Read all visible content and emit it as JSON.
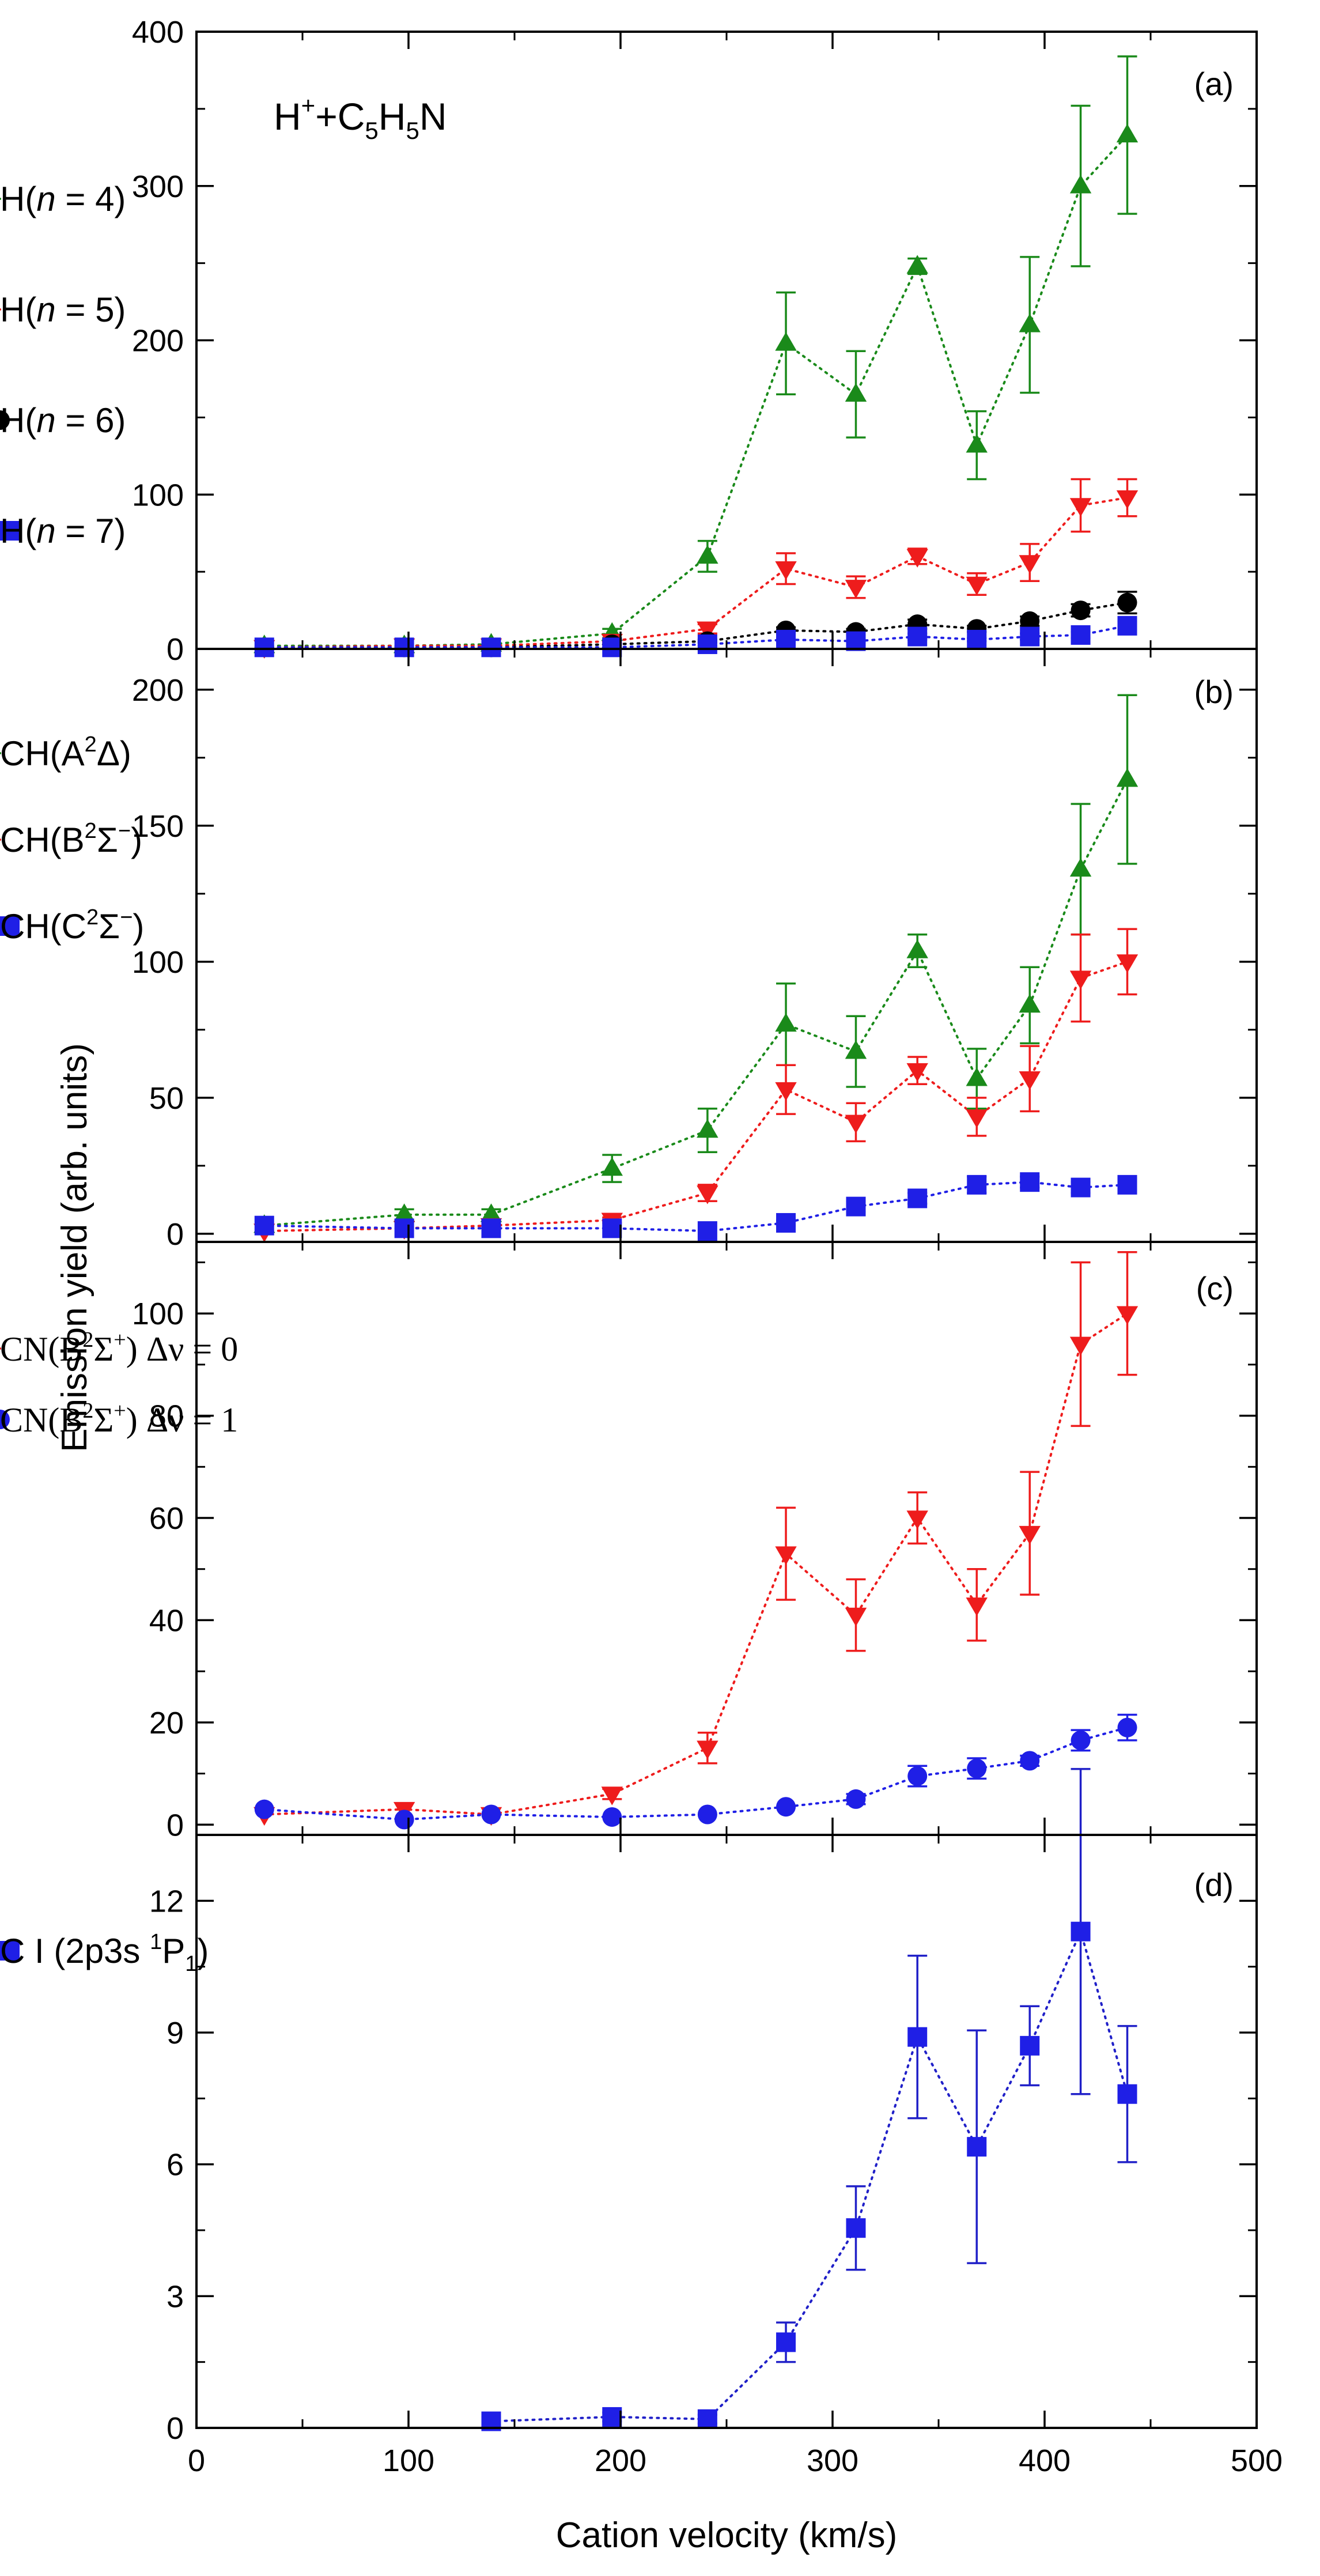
{
  "figure": {
    "ylabel": "Emission yield (arb. units)",
    "xlabel": "Cation velocity (km/s)",
    "xlim": [
      0,
      500
    ],
    "xticks": [
      0,
      100,
      200,
      300,
      400,
      500
    ],
    "xtick_labels": [
      "0",
      "100",
      "200",
      "300",
      "400",
      "500"
    ],
    "colors": {
      "green": "#1a8a1a",
      "red": "#ee1c1c",
      "black": "#000000",
      "blue": "#1f1fe6",
      "blue_dark": "#2020c8"
    }
  },
  "chart_data": [
    {
      "type": "scatter",
      "panel_label": "(a)",
      "title_parts": [
        "H",
        "+",
        "+C",
        "5",
        "H",
        "5",
        "N"
      ],
      "ylim": [
        0,
        400
      ],
      "yticks": [
        0,
        100,
        200,
        300,
        400
      ],
      "ytick_labels": [
        "0",
        "100",
        "200",
        "300",
        "400"
      ],
      "series": [
        {
          "name": "H(n = 4)",
          "legend": [
            "H(",
            "n",
            " = 4)"
          ],
          "color": "#1a8a1a",
          "err_color": "#1a8a1a",
          "line_color": "#1a8a1a",
          "marker": "triangle-up",
          "x": [
            32,
            98,
            139,
            196,
            241,
            278,
            311,
            340,
            368,
            393,
            417,
            439
          ],
          "y": [
            2,
            2,
            3,
            10,
            60,
            198,
            165,
            248,
            132,
            210,
            300,
            333
          ],
          "err": [
            0,
            0,
            0,
            3,
            10,
            33,
            28,
            5,
            22,
            44,
            52,
            51
          ]
        },
        {
          "name": "H(n = 5)",
          "legend": [
            "H(",
            "n",
            " = 5)"
          ],
          "color": "#ee1c1c",
          "err_color": "#ee1c1c",
          "line_color": "#ee1c1c",
          "marker": "triangle-down",
          "x": [
            32,
            98,
            139,
            196,
            241,
            278,
            311,
            340,
            368,
            393,
            417,
            439
          ],
          "y": [
            1,
            2,
            2,
            5,
            13,
            52,
            40,
            60,
            42,
            56,
            93,
            98
          ],
          "err": [
            0,
            0,
            0,
            1,
            3,
            10,
            7,
            5,
            7,
            12,
            17,
            12
          ]
        },
        {
          "name": "H(n = 6)",
          "legend": [
            "H(",
            "n",
            " = 6)"
          ],
          "color": "#000000",
          "err_color": "#000000",
          "line_color": "#000000",
          "marker": "circle",
          "x": [
            32,
            98,
            139,
            196,
            241,
            278,
            311,
            340,
            368,
            393,
            417,
            439
          ],
          "y": [
            1,
            1,
            1,
            3,
            5,
            12,
            11,
            16,
            13,
            18,
            25,
            30
          ],
          "err": [
            0,
            0,
            0,
            0,
            1,
            2,
            2,
            3,
            2,
            3,
            4,
            7
          ]
        },
        {
          "name": "H(n = 7)",
          "legend": [
            "H(",
            "n",
            " = 7)"
          ],
          "color": "#1f1fe6",
          "err_color": "#1f1fe6",
          "line_color": "#1f1fe6",
          "marker": "square",
          "x": [
            32,
            98,
            139,
            196,
            241,
            278,
            311,
            340,
            368,
            393,
            417,
            439
          ],
          "y": [
            1,
            1,
            1,
            1,
            3,
            6,
            5,
            8,
            6,
            8,
            9,
            15
          ],
          "err": [
            0,
            0,
            0,
            0,
            1,
            1,
            1,
            2,
            1,
            2,
            2,
            3
          ]
        }
      ]
    },
    {
      "type": "scatter",
      "panel_label": "(b)",
      "ylim": [
        -3,
        215
      ],
      "yticks": [
        0,
        50,
        100,
        150,
        200
      ],
      "ytick_labels": [
        "0",
        "50",
        "100",
        "150",
        "200"
      ],
      "series": [
        {
          "name": "CH(A2Δ)",
          "legend": [
            "CH(A",
            "2",
            "Δ)"
          ],
          "color": "#1a8a1a",
          "err_color": "#1a8a1a",
          "line_color": "#1a8a1a",
          "marker": "triangle-up",
          "x": [
            32,
            98,
            139,
            196,
            241,
            278,
            311,
            340,
            368,
            393,
            417,
            439
          ],
          "y": [
            3,
            7,
            7,
            24,
            38,
            77,
            67,
            104,
            57,
            84,
            134,
            167
          ],
          "err": [
            0,
            2,
            2,
            5,
            8,
            15,
            13,
            6,
            11,
            14,
            24,
            31
          ]
        },
        {
          "name": "CH(B2Σ−)",
          "legend": [
            "CH(B",
            "2",
            "Σ",
            "−",
            ")"
          ],
          "color": "#ee1c1c",
          "err_color": "#ee1c1c",
          "line_color": "#ee1c1c",
          "marker": "triangle-down",
          "x": [
            32,
            98,
            139,
            196,
            241,
            278,
            311,
            340,
            368,
            393,
            417,
            439
          ],
          "y": [
            1,
            2,
            3,
            5,
            15,
            53,
            41,
            60,
            43,
            57,
            94,
            100
          ],
          "err": [
            0,
            0,
            0,
            1,
            3,
            9,
            7,
            5,
            7,
            12,
            16,
            12
          ]
        },
        {
          "name": "CH(C2Σ−)",
          "legend": [
            "CH(C",
            "2",
            "Σ",
            "−",
            ")"
          ],
          "color": "#1f1fe6",
          "err_color": "#1f1fe6",
          "line_color": "#1f1fe6",
          "marker": "square",
          "x": [
            32,
            98,
            139,
            196,
            241,
            278,
            311,
            340,
            368,
            393,
            417,
            439
          ],
          "y": [
            3,
            2,
            2,
            2,
            1,
            4,
            10,
            13,
            18,
            19,
            17,
            18
          ],
          "err": [
            0,
            0,
            0,
            0,
            0,
            1,
            2,
            2,
            3,
            2,
            2,
            2
          ]
        }
      ]
    },
    {
      "type": "scatter",
      "panel_label": "(c)",
      "ylim": [
        -2,
        114
      ],
      "yticks": [
        0,
        20,
        40,
        60,
        80,
        100
      ],
      "ytick_labels": [
        "0",
        "20",
        "40",
        "60",
        "80",
        "100"
      ],
      "series": [
        {
          "name": "CN(B2Σ+) Δν = 0",
          "legend": [
            "CN(B",
            "2",
            "Σ",
            "+",
            ") Δν = 0"
          ],
          "serif": true,
          "color": "#ee1c1c",
          "err_color": "#ee1c1c",
          "line_color": "#ee1c1c",
          "marker": "triangle-down",
          "x": [
            32,
            98,
            139,
            196,
            241,
            278,
            311,
            340,
            368,
            393,
            417,
            439
          ],
          "y": [
            2,
            3,
            2,
            6,
            15,
            53,
            41,
            60,
            43,
            57,
            94,
            100
          ],
          "err": [
            0,
            0,
            0,
            1,
            3,
            9,
            7,
            5,
            7,
            12,
            16,
            12
          ]
        },
        {
          "name": "CN(B2Σ+) Δν = 1",
          "legend": [
            "CN(B",
            "2",
            "Σ",
            "+",
            ") Δν = 1"
          ],
          "serif": true,
          "color": "#1f1fe6",
          "err_color": "#1f1fe6",
          "line_color": "#1f1fe6",
          "marker": "circle",
          "x": [
            32,
            98,
            139,
            196,
            241,
            278,
            311,
            340,
            368,
            393,
            417,
            439
          ],
          "y": [
            3,
            1,
            2,
            1.5,
            2,
            3.5,
            5,
            9.5,
            11,
            12.5,
            16.5,
            19
          ],
          "err": [
            0,
            0,
            0,
            0,
            0,
            0,
            1,
            2,
            2,
            1,
            2,
            2.5
          ]
        }
      ]
    },
    {
      "type": "scatter",
      "panel_label": "(d)",
      "ylim": [
        0,
        13.5
      ],
      "yticks": [
        0,
        3,
        6,
        9,
        12
      ],
      "ytick_labels": [
        "0",
        "3",
        "6",
        "9",
        "12"
      ],
      "series": [
        {
          "name": "C I (2p3s 1P1)",
          "legend": [
            "C I (2p3s ",
            "1",
            "P",
            "1",
            ")"
          ],
          "legend_mode": "pre_sup_sub",
          "color": "#1f1fe6",
          "err_color": "#2020c8",
          "line_color": "#2020c8",
          "marker": "square",
          "x": [
            139,
            196,
            241,
            278,
            311,
            340,
            368,
            393,
            417,
            439
          ],
          "y": [
            0.15,
            0.25,
            0.2,
            1.95,
            4.55,
            8.9,
            6.4,
            8.7,
            11.3,
            7.6
          ],
          "err": [
            0.1,
            0.1,
            0.1,
            0.45,
            0.95,
            1.85,
            2.65,
            0.9,
            3.7,
            1.55
          ]
        }
      ]
    }
  ]
}
